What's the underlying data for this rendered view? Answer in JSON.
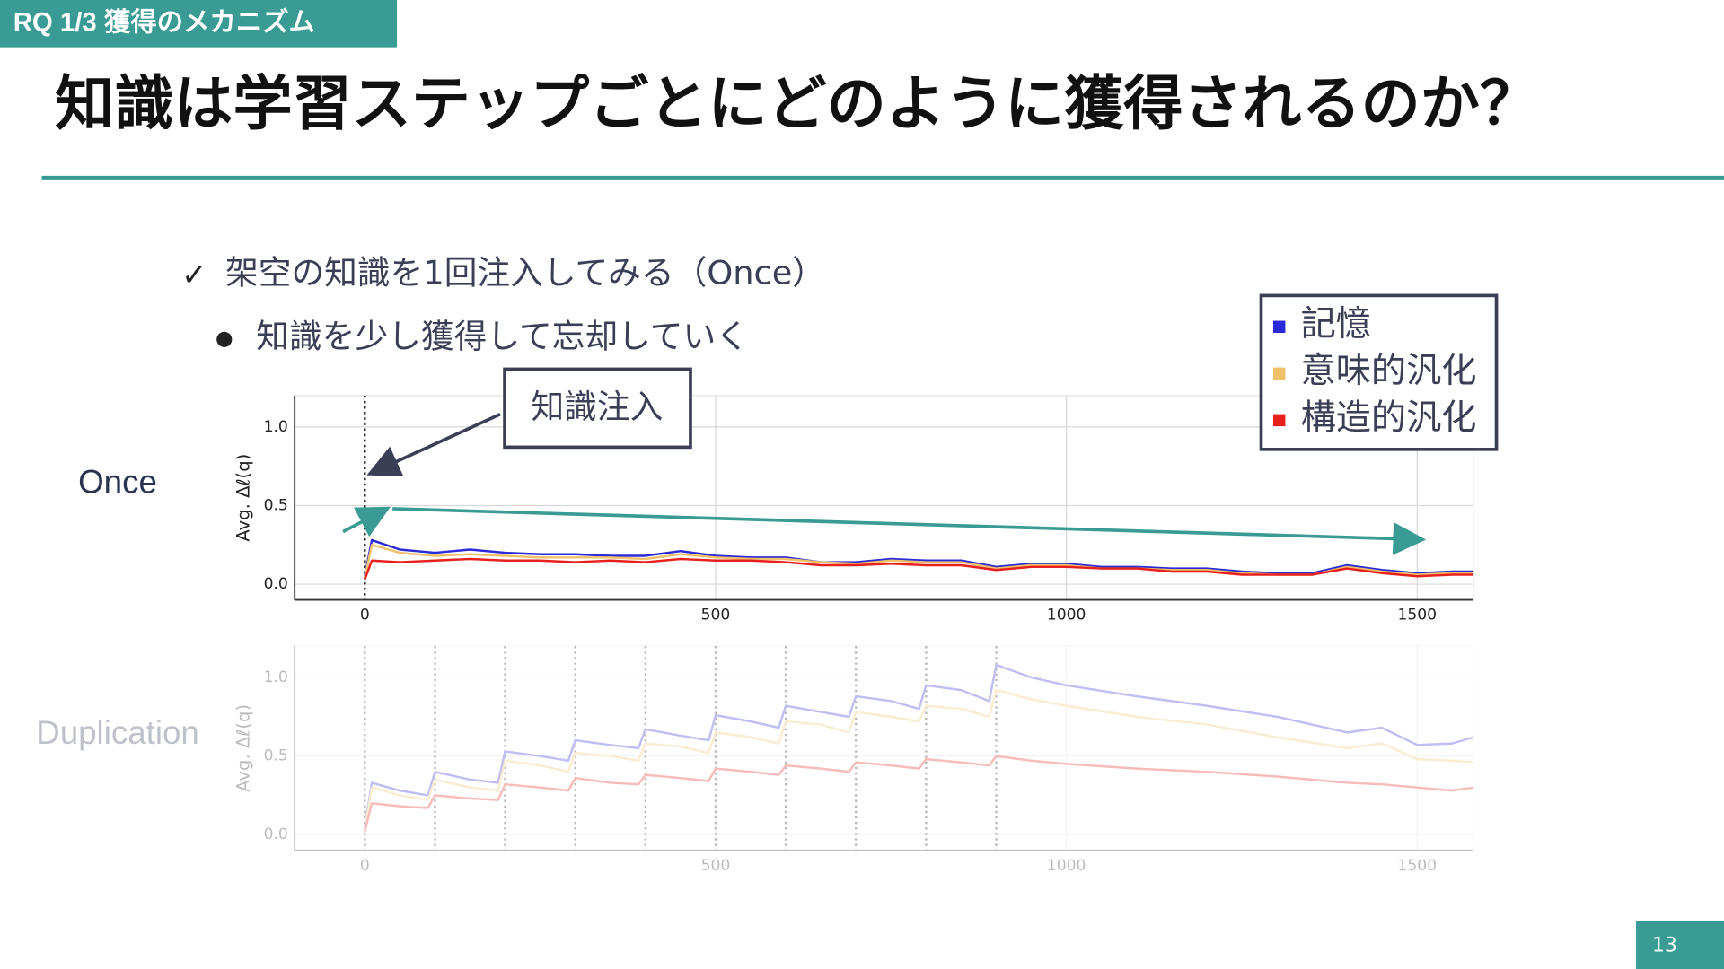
{
  "header": {
    "tag": "RQ 1/3 獲得のメカニズム",
    "title": "知識は学習ステップごとにどのように獲得されるのか？"
  },
  "bullets": [
    "架空の知識を1回注入してみる（Once）",
    "知識を少し獲得して忘却していく"
  ],
  "annotation": "知識注入",
  "page_number": "13",
  "chart_data": [
    {
      "type": "line",
      "title": "Once",
      "y_label": "Avg. Δℓ(q)",
      "xlim": [
        -100,
        1580
      ],
      "ylim": [
        -0.1,
        1.2
      ],
      "xticks": [
        0,
        500,
        1000,
        1500
      ],
      "yticks": [
        {
          "value": 0,
          "label": "0.0"
        },
        0.5,
        {
          "value": 1,
          "label": "1.0"
        }
      ],
      "grid": true,
      "injections": [
        0
      ],
      "x": [
        0,
        10,
        50,
        100,
        150,
        200,
        250,
        300,
        350,
        400,
        450,
        500,
        550,
        600,
        650,
        700,
        750,
        800,
        850,
        900,
        950,
        1000,
        1050,
        1100,
        1150,
        1200,
        1250,
        1300,
        1350,
        1400,
        1450,
        1500,
        1550,
        1580
      ],
      "series": [
        {
          "name": "記憶",
          "color": "#2a2ad6",
          "values": [
            0.05,
            0.28,
            0.22,
            0.2,
            0.22,
            0.2,
            0.19,
            0.19,
            0.18,
            0.18,
            0.21,
            0.18,
            0.17,
            0.17,
            0.14,
            0.14,
            0.16,
            0.15,
            0.15,
            0.11,
            0.13,
            0.13,
            0.11,
            0.11,
            0.1,
            0.1,
            0.08,
            0.07,
            0.07,
            0.12,
            0.09,
            0.07,
            0.08,
            0.08
          ]
        },
        {
          "name": "意味的汎化",
          "color": "#f0c16a",
          "values": [
            0.04,
            0.25,
            0.2,
            0.18,
            0.19,
            0.18,
            0.17,
            0.17,
            0.17,
            0.16,
            0.19,
            0.17,
            0.16,
            0.16,
            0.14,
            0.13,
            0.15,
            0.14,
            0.14,
            0.1,
            0.12,
            0.12,
            0.1,
            0.1,
            0.09,
            0.09,
            0.07,
            0.06,
            0.06,
            0.11,
            0.08,
            0.06,
            0.07,
            0.07
          ]
        },
        {
          "name": "構造的汎化",
          "color": "#e8201c",
          "values": [
            0.03,
            0.15,
            0.14,
            0.15,
            0.16,
            0.15,
            0.15,
            0.14,
            0.15,
            0.14,
            0.16,
            0.15,
            0.15,
            0.14,
            0.12,
            0.12,
            0.13,
            0.12,
            0.12,
            0.09,
            0.11,
            0.11,
            0.1,
            0.1,
            0.08,
            0.08,
            0.06,
            0.06,
            0.06,
            0.1,
            0.07,
            0.05,
            0.06,
            0.06
          ]
        }
      ]
    },
    {
      "type": "line",
      "title": "Duplication",
      "y_label": "Avg. Δℓ(q)",
      "xlim": [
        -100,
        1580
      ],
      "ylim": [
        -0.1,
        1.2
      ],
      "xticks": [
        0,
        500,
        1000,
        1500
      ],
      "yticks": [
        {
          "value": 0,
          "label": "0.0"
        },
        0.5,
        {
          "value": 1,
          "label": "1.0"
        }
      ],
      "grid": true,
      "injections": [
        0,
        100,
        200,
        300,
        400,
        500,
        600,
        700,
        800,
        900
      ],
      "x": [
        0,
        10,
        50,
        90,
        100,
        150,
        190,
        200,
        250,
        290,
        300,
        350,
        390,
        400,
        450,
        490,
        500,
        550,
        590,
        600,
        650,
        690,
        700,
        750,
        790,
        800,
        850,
        890,
        900,
        950,
        1000,
        1100,
        1200,
        1300,
        1400,
        1450,
        1500,
        1550,
        1580
      ],
      "series": [
        {
          "color": "#2a2ad6",
          "values": [
            0.05,
            0.33,
            0.28,
            0.25,
            0.4,
            0.35,
            0.33,
            0.53,
            0.5,
            0.47,
            0.6,
            0.57,
            0.55,
            0.67,
            0.63,
            0.6,
            0.76,
            0.72,
            0.68,
            0.82,
            0.78,
            0.75,
            0.88,
            0.85,
            0.8,
            0.95,
            0.92,
            0.85,
            1.08,
            1.0,
            0.95,
            0.88,
            0.82,
            0.75,
            0.65,
            0.68,
            0.57,
            0.58,
            0.62
          ]
        },
        {
          "color": "#f0c16a",
          "values": [
            0.03,
            0.3,
            0.25,
            0.22,
            0.35,
            0.3,
            0.28,
            0.47,
            0.44,
            0.4,
            0.52,
            0.5,
            0.47,
            0.58,
            0.56,
            0.52,
            0.65,
            0.62,
            0.58,
            0.72,
            0.7,
            0.65,
            0.78,
            0.75,
            0.72,
            0.82,
            0.8,
            0.75,
            0.92,
            0.86,
            0.82,
            0.75,
            0.7,
            0.62,
            0.55,
            0.58,
            0.48,
            0.47,
            0.46
          ]
        },
        {
          "color": "#e8201c",
          "values": [
            0.02,
            0.2,
            0.18,
            0.17,
            0.25,
            0.23,
            0.22,
            0.32,
            0.3,
            0.28,
            0.36,
            0.33,
            0.32,
            0.38,
            0.36,
            0.34,
            0.42,
            0.4,
            0.38,
            0.44,
            0.42,
            0.4,
            0.46,
            0.44,
            0.42,
            0.48,
            0.46,
            0.44,
            0.5,
            0.47,
            0.45,
            0.42,
            0.4,
            0.37,
            0.33,
            0.32,
            0.3,
            0.28,
            0.3
          ]
        }
      ]
    }
  ]
}
